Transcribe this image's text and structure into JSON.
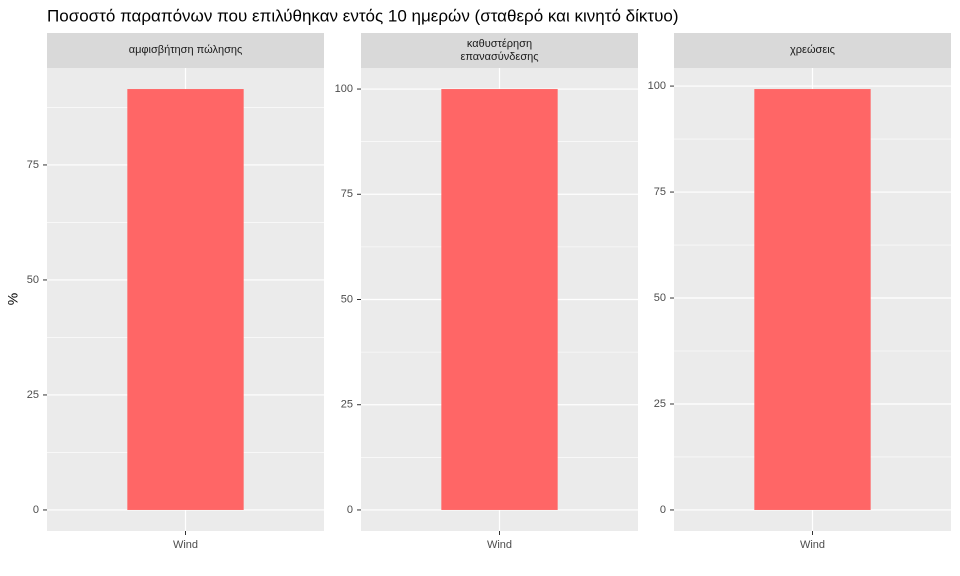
{
  "title": "Ποσοστό παραπόνων που επιλύθηκαν εντός 10 ημερών (σταθερό και κινητό δίκτυο)",
  "ylabel": "%",
  "chart_data": [
    {
      "type": "bar",
      "title": "αμφισβήτηση πώλησης",
      "categories": [
        "Wind"
      ],
      "values": [
        91.5
      ],
      "color": "#ff6666",
      "ylim": [
        -4.575,
        96.075
      ],
      "yticks": [
        0,
        25,
        50,
        75
      ],
      "grid": true
    },
    {
      "type": "bar",
      "title": "καθυστέρηση\nεπανασύνδεσης",
      "categories": [
        "Wind"
      ],
      "values": [
        100
      ],
      "color": "#ff6666",
      "ylim": [
        -5,
        105
      ],
      "yticks": [
        0,
        25,
        50,
        75,
        100
      ],
      "grid": true
    },
    {
      "type": "bar",
      "title": "χρεώσεις",
      "categories": [
        "Wind"
      ],
      "values": [
        99.3
      ],
      "color": "#ff6666",
      "ylim": [
        -4.965,
        104.265
      ],
      "yticks": [
        0,
        25,
        50,
        75,
        100
      ],
      "grid": true
    }
  ]
}
